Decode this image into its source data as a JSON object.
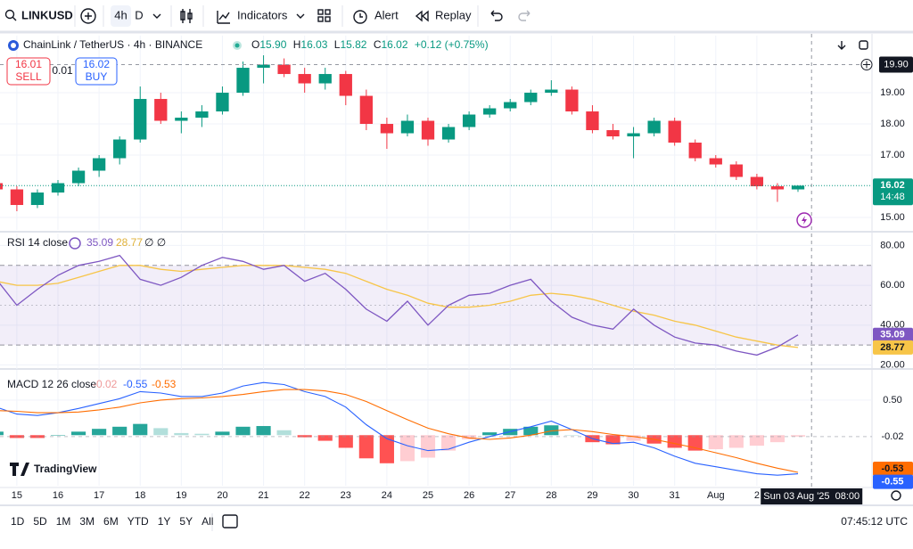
{
  "toolbar": {
    "symbol": "LINKUSD",
    "interval": "4h",
    "interval_alt": "D",
    "indicators": "Indicators",
    "alert": "Alert",
    "replay": "Replay"
  },
  "bottom_bar": {
    "ranges": [
      "1D",
      "5D",
      "1M",
      "3M",
      "6M",
      "YTD",
      "1Y",
      "5Y",
      "All"
    ],
    "clock": "07:45:12 UTC"
  },
  "logo": "TradingView",
  "chart_data": [
    {
      "type": "candlestick",
      "title": "ChainLink / TetherUS · 4h · BINANCE",
      "legend": {
        "o": "O",
        "o_value": "15.90",
        "h": "H",
        "h_value": "16.03",
        "l": "L",
        "l_value": "15.82",
        "c": "C",
        "c_value": "16.02",
        "change": "+0.12 (+0.75%)"
      },
      "sell": 16.01,
      "sell_label": "SELL",
      "buy": 16.02,
      "buy_label": "BUY",
      "spread": 0.01,
      "countdown": "14:48",
      "crosshair": {
        "x": 19.33,
        "x_label": "Sun 03 Aug '25  08:00",
        "y": 19.9,
        "y_label": "19.90"
      },
      "up_color": "#089981",
      "down_color": "#f23645",
      "x": [
        -0.5,
        0,
        0.5,
        1,
        1.5,
        2,
        2.5,
        3,
        3.5,
        4,
        4.5,
        5,
        5.5,
        6,
        6.5,
        7,
        7.5,
        8,
        8.5,
        9,
        9.5,
        10,
        10.5,
        11,
        11.5,
        12,
        12.5,
        13,
        13.5,
        14,
        14.5,
        15,
        15.5,
        16,
        16.5,
        17,
        17.5,
        18,
        18.5,
        19
      ],
      "open": [
        16.1,
        15.9,
        15.4,
        15.8,
        16.1,
        16.5,
        16.9,
        17.5,
        18.8,
        18.1,
        18.2,
        18.4,
        19.0,
        19.8,
        19.9,
        19.6,
        19.3,
        19.6,
        18.9,
        18.0,
        17.7,
        18.1,
        17.5,
        17.9,
        18.3,
        18.5,
        18.7,
        19.0,
        19.1,
        18.4,
        17.8,
        17.6,
        17.7,
        18.1,
        17.4,
        16.9,
        16.7,
        16.3,
        16.0,
        15.9
      ],
      "high": [
        16.2,
        16.0,
        15.9,
        16.2,
        16.6,
        17.0,
        17.6,
        19.2,
        19.0,
        18.4,
        18.6,
        19.2,
        20.0,
        20.2,
        20.1,
        19.8,
        19.8,
        19.7,
        19.1,
        18.2,
        18.3,
        18.2,
        18.0,
        18.4,
        18.6,
        18.8,
        19.1,
        19.4,
        19.2,
        18.6,
        18.0,
        17.9,
        18.2,
        18.2,
        17.5,
        17.0,
        16.8,
        16.4,
        16.1,
        16.03
      ],
      "low": [
        15.85,
        15.2,
        15.3,
        15.7,
        16.0,
        16.3,
        16.7,
        17.4,
        18.0,
        17.7,
        17.9,
        18.3,
        18.9,
        19.3,
        19.5,
        19.0,
        19.1,
        18.6,
        17.8,
        17.2,
        17.6,
        17.3,
        17.4,
        17.8,
        18.2,
        18.4,
        18.6,
        18.9,
        18.3,
        17.7,
        17.5,
        16.9,
        17.6,
        17.3,
        16.8,
        16.6,
        16.2,
        15.9,
        15.5,
        15.82
      ],
      "close": [
        15.9,
        15.4,
        15.8,
        16.1,
        16.5,
        16.9,
        17.5,
        18.8,
        18.1,
        18.2,
        18.4,
        19.0,
        19.8,
        19.9,
        19.6,
        19.3,
        19.6,
        18.9,
        18.0,
        17.7,
        18.1,
        17.5,
        17.9,
        18.3,
        18.5,
        18.7,
        19.0,
        19.1,
        18.4,
        17.8,
        17.6,
        17.7,
        18.1,
        17.4,
        16.9,
        16.7,
        16.3,
        16.0,
        15.9,
        16.02
      ],
      "xlim": [
        -0.41,
        20.8
      ],
      "xticks": [
        {
          "value": 0,
          "label": "15"
        },
        {
          "value": 1,
          "label": "16"
        },
        {
          "value": 2,
          "label": "17"
        },
        {
          "value": 3,
          "label": "18"
        },
        {
          "value": 4,
          "label": "19"
        },
        {
          "value": 5,
          "label": "20"
        },
        {
          "value": 6,
          "label": "21"
        },
        {
          "value": 7,
          "label": "22"
        },
        {
          "value": 8,
          "label": "23"
        },
        {
          "value": 9,
          "label": "24"
        },
        {
          "value": 10,
          "label": "25"
        },
        {
          "value": 11,
          "label": "26"
        },
        {
          "value": 12,
          "label": "27"
        },
        {
          "value": 13,
          "label": "28"
        },
        {
          "value": 14,
          "label": "29"
        },
        {
          "value": 15,
          "label": "30"
        },
        {
          "value": 16,
          "label": "31"
        },
        {
          "value": 17,
          "label": "Aug"
        },
        {
          "value": 18,
          "label": "2"
        }
      ],
      "ylim": [
        14.6,
        20.83
      ],
      "yticks": [
        {
          "value": 15,
          "label": "15.00"
        },
        {
          "value": 17,
          "label": "17.00"
        },
        {
          "value": 18,
          "label": "18.00"
        },
        {
          "value": 19,
          "label": "19.00"
        }
      ],
      "grid": true
    },
    {
      "type": "line",
      "title": "RSI 14 close",
      "extra": "∅ ∅",
      "series": [
        {
          "name": "RSI",
          "color": "#7e57c2",
          "values": [
            63,
            50,
            58,
            65,
            70,
            72,
            75,
            63,
            60,
            64,
            70,
            74,
            72,
            68,
            70,
            62,
            66,
            58,
            48,
            42,
            52,
            40,
            50,
            55,
            56,
            60,
            63,
            52,
            44,
            40,
            38,
            48,
            40,
            34,
            31,
            30,
            27,
            25,
            29,
            35.09
          ]
        },
        {
          "name": "RSI MA",
          "color": "#f7c548",
          "values": [
            62,
            60,
            60,
            61,
            64,
            67,
            70,
            70,
            68,
            67,
            68,
            69,
            70,
            70,
            70,
            69,
            68,
            66,
            62,
            58,
            55,
            51,
            49,
            49,
            50,
            52,
            55,
            56,
            55,
            53,
            50,
            47,
            45,
            42,
            40,
            37,
            34,
            32,
            30,
            28.77
          ]
        }
      ],
      "bands": [
        30,
        70
      ],
      "midline": 50,
      "ylim": [
        18,
        86
      ],
      "yticks": [
        {
          "value": 20,
          "label": "20.00"
        },
        {
          "value": 40,
          "label": "40.00"
        },
        {
          "value": 60,
          "label": "60.00"
        },
        {
          "value": 80,
          "label": "80.00"
        }
      ],
      "grid": true
    },
    {
      "type": "macd",
      "title": "MACD 12 26 close",
      "histogram": {
        "name": "Histogram",
        "values": [
          0.05,
          -0.04,
          -0.04,
          0,
          0.05,
          0.09,
          0.12,
          0.16,
          0.1,
          0.03,
          0.02,
          0.05,
          0.12,
          0.13,
          0.07,
          -0.03,
          -0.08,
          -0.18,
          -0.33,
          -0.4,
          -0.37,
          -0.32,
          -0.22,
          -0.06,
          0.04,
          0.09,
          0.12,
          0.14,
          0,
          -0.1,
          -0.13,
          -0.08,
          -0.12,
          -0.18,
          -0.22,
          -0.2,
          -0.18,
          -0.15,
          -0.1,
          -0.02
        ]
      },
      "series": [
        {
          "name": "MACD",
          "color": "#2962ff",
          "values": [
            0.4,
            0.3,
            0.28,
            0.32,
            0.38,
            0.45,
            0.52,
            0.62,
            0.6,
            0.55,
            0.55,
            0.6,
            0.7,
            0.75,
            0.72,
            0.62,
            0.55,
            0.4,
            0.15,
            -0.05,
            -0.15,
            -0.22,
            -0.2,
            -0.1,
            -0.02,
            0.05,
            0.12,
            0.2,
            0.08,
            -0.05,
            -0.12,
            -0.1,
            -0.18,
            -0.3,
            -0.4,
            -0.45,
            -0.5,
            -0.55,
            -0.57,
            -0.55
          ]
        },
        {
          "name": "Signal",
          "color": "#ff6d00",
          "values": [
            0.35,
            0.34,
            0.32,
            0.32,
            0.33,
            0.36,
            0.4,
            0.46,
            0.5,
            0.52,
            0.53,
            0.55,
            0.58,
            0.62,
            0.65,
            0.65,
            0.63,
            0.58,
            0.48,
            0.35,
            0.22,
            0.1,
            0.02,
            -0.04,
            -0.06,
            -0.04,
            0.0,
            0.06,
            0.08,
            0.05,
            0.01,
            -0.02,
            -0.06,
            -0.12,
            -0.18,
            -0.25,
            -0.32,
            -0.4,
            -0.47,
            -0.53
          ]
        }
      ],
      "ylim": [
        -0.72,
        0.93
      ],
      "yticks": [
        {
          "value": 0.5,
          "label": "0.50"
        }
      ],
      "grid": true
    }
  ]
}
